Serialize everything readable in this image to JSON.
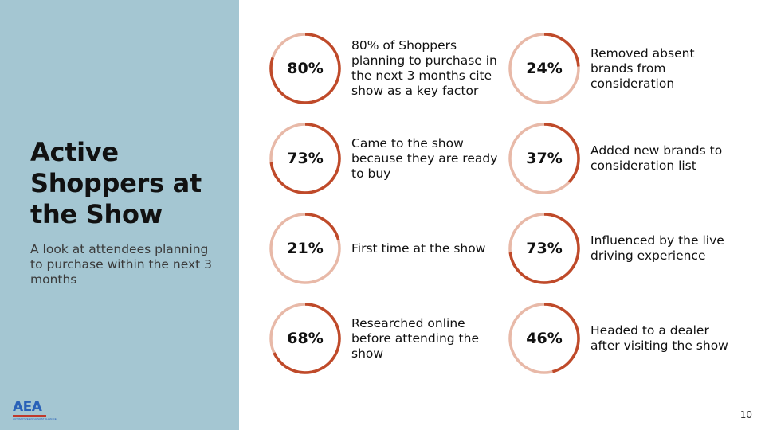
{
  "title": "Active\nShoppers at\nthe Show",
  "subtitle": "A look at attendees planning to purchase within the next 3 months",
  "logo": {
    "text": "AEA",
    "tagline": "AUTOMOTIVE ENTHUSIAST ALLIANCE"
  },
  "page_number": "10",
  "colors": {
    "sidebar": "#a4c6d2",
    "ring_track": "#e8b9a8",
    "ring_fill": "#bf4a2a"
  },
  "stats": [
    {
      "value": 80,
      "label": "80%",
      "text": "80% of Shoppers planning to purchase in the next 3 months cite show as a key factor"
    },
    {
      "value": 73,
      "label": "73%",
      "text": "Came to the show because they are ready to buy"
    },
    {
      "value": 21,
      "label": "21%",
      "text": "First time at the show"
    },
    {
      "value": 68,
      "label": "68%",
      "text": "Researched online before attending the show"
    },
    {
      "value": 24,
      "label": "24%",
      "text": "Removed absent brands from consideration"
    },
    {
      "value": 37,
      "label": "37%",
      "text": "Added new brands to consideration list"
    },
    {
      "value": 73,
      "label": "73%",
      "text": "Influenced by the live driving experience"
    },
    {
      "value": 46,
      "label": "46%",
      "text": "Headed to a dealer after visiting the show"
    }
  ]
}
